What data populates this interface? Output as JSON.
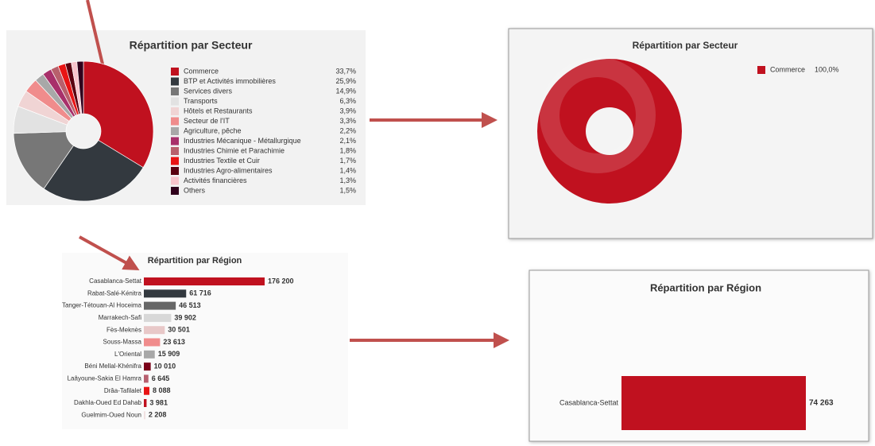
{
  "chart_data": [
    {
      "type": "pie",
      "title": "Répartition par Secteur",
      "categories": [
        "Commerce",
        "BTP et Activités immobilières",
        "Services divers",
        "Transports",
        "Hôtels et Restaurants",
        "Secteur de l'IT",
        "Agriculture, pêche",
        "Industries Mécanique - Métallurgique",
        "Industries Chimie et Parachimie",
        "Industries Textile et Cuir",
        "Industries Agro-alimentaires",
        "Activités financières",
        "Others"
      ],
      "values": [
        33.7,
        25.9,
        14.9,
        6.3,
        3.9,
        3.3,
        2.2,
        2.1,
        1.8,
        1.7,
        1.4,
        1.3,
        1.5
      ],
      "value_labels": [
        "33,7%",
        "25,9%",
        "14,9%",
        "6,3%",
        "3,9%",
        "3,3%",
        "2,2%",
        "2,1%",
        "1,8%",
        "1,7%",
        "1,4%",
        "1,3%",
        "1,5%"
      ],
      "colors": [
        "#c0111f",
        "#33393f",
        "#777777",
        "#e2e2e2",
        "#f0d4d4",
        "#f08c8c",
        "#a8a8a8",
        "#a8306a",
        "#b8606c",
        "#e81414",
        "#5a0010",
        "#f8c4cc",
        "#30001c"
      ]
    },
    {
      "type": "pie",
      "title": "Répartition par Secteur",
      "categories": [
        "Commerce"
      ],
      "values": [
        100.0
      ],
      "value_labels": [
        "100,0%"
      ],
      "colors": [
        "#c0111f"
      ]
    },
    {
      "type": "bar",
      "title": "Répartition par Région",
      "categories": [
        "Casablanca-Settat",
        "Rabat-Salé-Kénitra",
        "Tanger-Tétouan-Al Hoceima",
        "Marrakech-Safi",
        "Fès-Meknès",
        "Souss-Massa",
        "L'Oriental",
        "Béni Mellal-Khénifra",
        "Laâyoune-Sakia El Hamra",
        "Drâa-Tafilalet",
        "Dakhla-Oued Ed Dahab",
        "Guelmim-Oued Noun"
      ],
      "values": [
        176200,
        61716,
        46513,
        39902,
        30501,
        23613,
        15909,
        10010,
        6645,
        8088,
        3981,
        2208
      ],
      "value_labels": [
        "176 200",
        "61 716",
        "46 513",
        "39 902",
        "30 501",
        "23 613",
        "15 909",
        "10 010",
        "6 645",
        "8 088",
        "3 981",
        "2 208"
      ],
      "colors": [
        "#c0111f",
        "#33393f",
        "#666666",
        "#d8d8d8",
        "#e8c8c8",
        "#f08c8c",
        "#a8a8a8",
        "#7a0018",
        "#b86070",
        "#e81414",
        "#c0111f",
        "#f0e0e0"
      ]
    },
    {
      "type": "bar",
      "title": "Répartition par Région",
      "categories": [
        "Casablanca-Settat"
      ],
      "values": [
        74263
      ],
      "value_labels": [
        "74 263"
      ],
      "colors": [
        "#c0111f"
      ]
    }
  ]
}
